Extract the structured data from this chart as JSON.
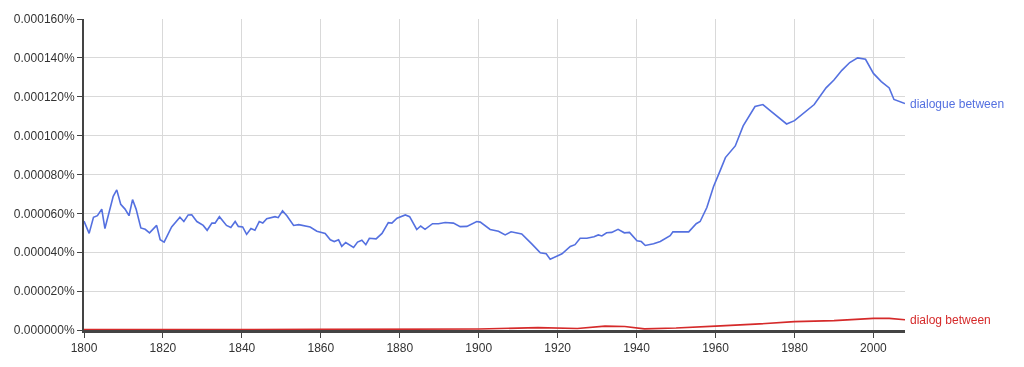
{
  "chart_data": {
    "type": "line",
    "xlim": [
      1800,
      2008
    ],
    "ylim": [
      0,
      0.00016
    ],
    "xticks": [
      1800,
      1820,
      1840,
      1860,
      1880,
      1900,
      1920,
      1940,
      1960,
      1980,
      2000
    ],
    "yticks": [
      {
        "value": 0,
        "label": "0.000000%"
      },
      {
        "value": 2e-05,
        "label": "0.000020%"
      },
      {
        "value": 4e-05,
        "label": "0.000040%"
      },
      {
        "value": 6e-05,
        "label": "0.000060%"
      },
      {
        "value": 8e-05,
        "label": "0.000080%"
      },
      {
        "value": 0.0001,
        "label": "0.000100%"
      },
      {
        "value": 0.00012,
        "label": "0.000120%"
      },
      {
        "value": 0.00014,
        "label": "0.000140%"
      },
      {
        "value": 0.00016,
        "label": "0.000160%"
      }
    ],
    "grid": true,
    "legend": false,
    "marker": "none",
    "line_style": "solid",
    "series": [
      {
        "name": "dialogue between",
        "color": "#5470e0",
        "x": [
          1800,
          1801.3,
          1802.4,
          1803.4,
          1804.5,
          1805.3,
          1807.4,
          1808.3,
          1809.3,
          1810.4,
          1811.4,
          1812.3,
          1813.2,
          1814.4,
          1815.5,
          1816.6,
          1818.4,
          1819.3,
          1820.3,
          1822.2,
          1824.3,
          1825.3,
          1826.4,
          1827.3,
          1828.6,
          1830.2,
          1831.2,
          1832.4,
          1833.2,
          1834.3,
          1836.1,
          1837.2,
          1838.3,
          1839.1,
          1840.2,
          1841.2,
          1842.3,
          1843.3,
          1844.4,
          1845.3,
          1846.3,
          1848.4,
          1849.2,
          1850.3,
          1851.4,
          1853.1,
          1854.4,
          1857.3,
          1859,
          1861.1,
          1862.4,
          1863.4,
          1864.5,
          1865.3,
          1866.3,
          1868.3,
          1869.3,
          1870.4,
          1871.4,
          1872.3,
          1874,
          1875.5,
          1877.1,
          1878,
          1879.3,
          1881.4,
          1882.5,
          1884.3,
          1885.3,
          1886.4,
          1888.3,
          1889.8,
          1891.5,
          1893.6,
          1895.3,
          1897,
          1899.5,
          1900.4,
          1902.9,
          1905,
          1906.7,
          1908.2,
          1910.9,
          1913.5,
          1915.6,
          1917.1,
          1918.1,
          1921.1,
          1923.2,
          1924.4,
          1925.7,
          1927.4,
          1929.2,
          1930.3,
          1931.2,
          1932.4,
          1933.7,
          1935.3,
          1936.9,
          1938.2,
          1940.1,
          1941.2,
          1942.2,
          1944.3,
          1946,
          1948.5,
          1949.2,
          1953.2,
          1955.1,
          1956.1,
          1957.8,
          1959.5,
          1961.2,
          1962.5,
          1965,
          1967,
          1970,
          1972,
          1974,
          1978,
          1980,
          1985,
          1988,
          1990,
          1992,
          1994,
          1996,
          1998,
          2000,
          2002,
          2004,
          2005.2,
          2008
        ],
        "values": [
          5.6e-05,
          4.97e-05,
          5.8e-05,
          5.88e-05,
          6.22e-05,
          5.22e-05,
          6.88e-05,
          7.21e-05,
          6.47e-05,
          6.22e-05,
          5.88e-05,
          6.71e-05,
          6.22e-05,
          5.25e-05,
          5.18e-05,
          5e-05,
          5.38e-05,
          4.64e-05,
          4.52e-05,
          5.3e-05,
          5.8e-05,
          5.58e-05,
          5.92e-05,
          5.93e-05,
          5.58e-05,
          5.38e-05,
          5.13e-05,
          5.5e-05,
          5.5e-05,
          5.83e-05,
          5.38e-05,
          5.27e-05,
          5.58e-05,
          5.33e-05,
          5.3e-05,
          4.92e-05,
          5.22e-05,
          5.13e-05,
          5.58e-05,
          5.5e-05,
          5.72e-05,
          5.83e-05,
          5.78e-05,
          6.13e-05,
          5.88e-05,
          5.38e-05,
          5.42e-05,
          5.3e-05,
          5.08e-05,
          4.97e-05,
          4.64e-05,
          4.55e-05,
          4.64e-05,
          4.3e-05,
          4.5e-05,
          4.25e-05,
          4.52e-05,
          4.62e-05,
          4.39e-05,
          4.72e-05,
          4.69e-05,
          4.97e-05,
          5.52e-05,
          5.5e-05,
          5.75e-05,
          5.92e-05,
          5.83e-05,
          5.17e-05,
          5.35e-05,
          5.18e-05,
          5.47e-05,
          5.47e-05,
          5.53e-05,
          5.5e-05,
          5.32e-05,
          5.33e-05,
          5.58e-05,
          5.55e-05,
          5.17e-05,
          5.08e-05,
          4.89e-05,
          5.05e-05,
          4.94e-05,
          4.42e-05,
          3.97e-05,
          3.92e-05,
          3.64e-05,
          3.92e-05,
          4.3e-05,
          4.39e-05,
          4.72e-05,
          4.72e-05,
          4.8e-05,
          4.89e-05,
          4.84e-05,
          5e-05,
          5.02e-05,
          5.18e-05,
          5e-05,
          5.02e-05,
          4.59e-05,
          4.55e-05,
          4.35e-05,
          4.44e-05,
          4.55e-05,
          4.85e-05,
          5.05e-05,
          5.05e-05,
          5.47e-05,
          5.58e-05,
          6.3e-05,
          7.38e-05,
          8.21e-05,
          8.87e-05,
          9.47e-05,
          0.000105,
          0.000115,
          0.000116,
          0.0001126,
          0.000106,
          0.0001077,
          0.000116,
          0.0001246,
          0.0001286,
          0.0001336,
          0.0001376,
          0.00014,
          0.0001393,
          0.000132,
          0.0001278,
          0.0001245,
          0.0001186,
          0.0001165
        ]
      },
      {
        "name": "dialog between",
        "color": "#d52a2a",
        "x": [
          1800,
          1860,
          1900,
          1915,
          1925,
          1932,
          1937,
          1942,
          1950,
          1960,
          1970,
          1980,
          1990,
          2000,
          2004,
          2008
        ],
        "values": [
          2e-07,
          3e-07,
          5e-07,
          1.2e-06,
          8e-07,
          2e-06,
          1.8e-06,
          6e-07,
          1e-06,
          2e-06,
          3e-06,
          4.3e-06,
          4.8e-06,
          6e-06,
          6e-06,
          5.3e-06
        ]
      }
    ]
  }
}
